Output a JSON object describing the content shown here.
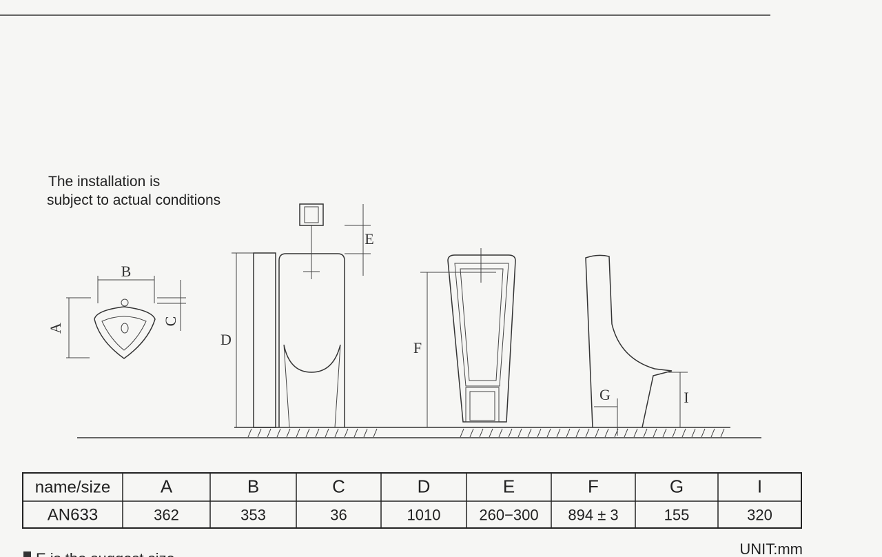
{
  "note": [
    "The installation is",
    "subject to actual conditions"
  ],
  "drawing": {
    "labels": {
      "top_b": "B",
      "top_a": "A",
      "top_c": "C",
      "d": "D",
      "e": "E",
      "f": "F",
      "g": "G",
      "i": "I"
    }
  },
  "table": {
    "header": [
      "name/size",
      "A",
      "B",
      "C",
      "D",
      "E",
      "F",
      "G",
      "I"
    ],
    "rows": [
      [
        "AN633",
        "362",
        "353",
        "36",
        "1010",
        "260−300",
        "894 ± 3",
        "155",
        "320"
      ]
    ]
  },
  "unit": "UNIT:mm",
  "footnote": "E is the suggest size"
}
